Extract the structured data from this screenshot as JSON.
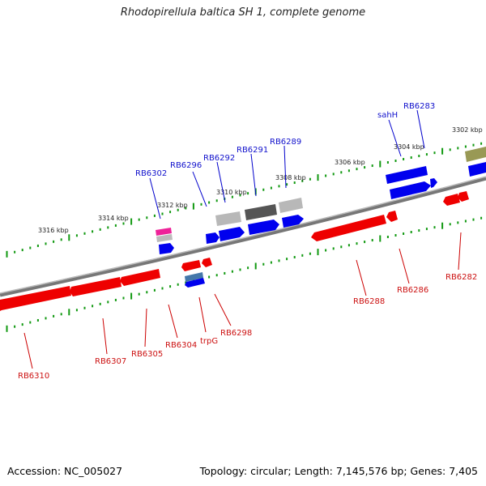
{
  "header": {
    "title": "Rhodopirellula baltica SH 1, complete genome"
  },
  "footer": {
    "accession": "Accession: NC_005027",
    "topology": "Topology: circular; Length: 7,145,576 bp; Genes: 7,405"
  },
  "scale": {
    "tick_labels": [
      "3316 kbp",
      "3314 kbp",
      "3312 kbp",
      "3310 kbp",
      "3308 kbp",
      "3306 kbp",
      "3304 kbp",
      "3302 kbp"
    ]
  },
  "genes": {
    "labels_top": [
      "RB6302",
      "RB6296",
      "RB6292",
      "RB6291",
      "RB6289",
      "sahH",
      "RB6283"
    ],
    "labels_bottom": [
      "RB6310",
      "RB6307",
      "RB6305",
      "RB6304",
      "trpG",
      "RB6298",
      "RB6288",
      "RB6286",
      "RB6282"
    ]
  },
  "colors": {
    "forward_strand": "#0000ee",
    "reverse_strand": "#ee0000",
    "tick": "#119911",
    "backbone": "#888888",
    "grey_gene": "#aaaaaa",
    "dark_gene": "#555555",
    "olive_gene": "#999955",
    "pink_gene": "#ee2299",
    "steel_gene": "#4477aa"
  }
}
